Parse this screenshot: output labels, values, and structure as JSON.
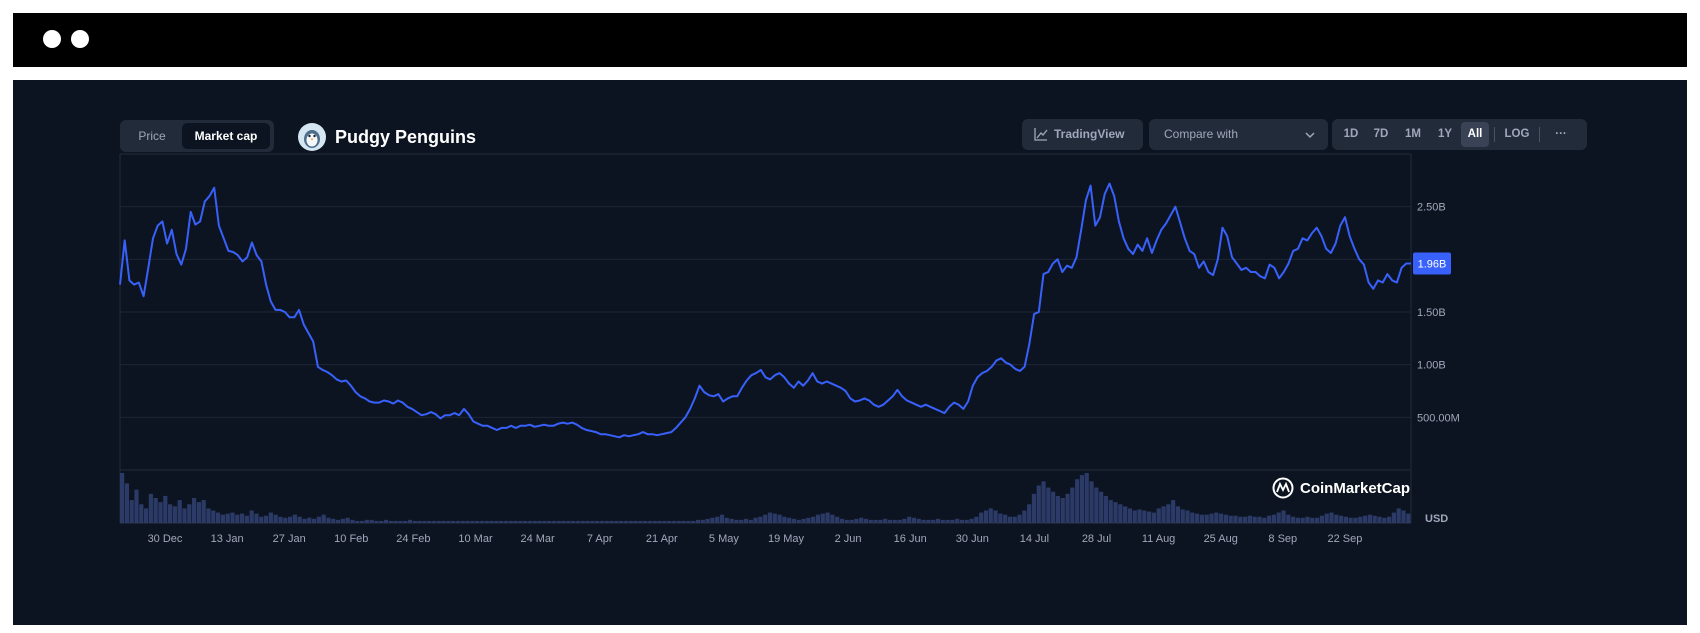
{
  "toggle": {
    "price_label": "Price",
    "market_cap_label": "Market cap",
    "active": "Market cap"
  },
  "coin": {
    "name": "Pudgy Penguins",
    "icon": "penguin-logo-icon"
  },
  "toolbar": {
    "tradingview_label": "TradingView",
    "compare_placeholder": "Compare with",
    "ranges": [
      "1D",
      "7D",
      "1M",
      "1Y",
      "All"
    ],
    "active_range": "All",
    "log_label": "LOG",
    "more_label": "···"
  },
  "colors": {
    "line": "#3861fb",
    "background": "#0d1421",
    "price_tag": "#3861fb",
    "volume": "#2b3a66"
  },
  "chart_data": {
    "type": "line",
    "title": "",
    "ylabel": "",
    "ylim": [
      0,
      3000000000
    ],
    "y_ticks": [
      {
        "value": 500000000,
        "label": "500.00M"
      },
      {
        "value": 1000000000,
        "label": "1.00B"
      },
      {
        "value": 1500000000,
        "label": "1.50B"
      },
      {
        "value": 2000000000,
        "label": ""
      },
      {
        "value": 2500000000,
        "label": "2.50B"
      }
    ],
    "x_ticks": [
      "30 Dec",
      "13 Jan",
      "27 Jan",
      "10 Feb",
      "24 Feb",
      "10 Mar",
      "24 Mar",
      "7 Apr",
      "21 Apr",
      "5 May",
      "19 May",
      "2 Jun",
      "16 Jun",
      "30 Jun",
      "14 Jul",
      "28 Jul",
      "11 Aug",
      "25 Aug",
      "8 Sep",
      "22 Sep"
    ],
    "current_value_label": "1.96B",
    "volume_unit_label": "USD",
    "watermark": "CoinMarketCap",
    "series": [
      {
        "values": [
          1.76,
          2.18,
          1.8,
          1.76,
          1.78,
          1.65,
          1.92,
          2.2,
          2.32,
          2.36,
          2.15,
          2.28,
          2.05,
          1.95,
          2.1,
          2.45,
          2.33,
          2.36,
          2.55,
          2.6,
          2.68,
          2.32,
          2.2,
          2.08,
          2.07,
          2.04,
          1.98,
          2.02,
          2.16,
          2.04,
          1.98,
          1.76,
          1.6,
          1.52,
          1.52,
          1.5,
          1.45,
          1.45,
          1.52,
          1.38,
          1.3,
          1.22,
          0.98,
          0.95,
          0.93,
          0.9,
          0.86,
          0.84,
          0.85,
          0.8,
          0.74,
          0.7,
          0.68,
          0.65,
          0.64,
          0.64,
          0.66,
          0.65,
          0.63,
          0.66,
          0.64,
          0.6,
          0.58,
          0.55,
          0.52,
          0.53,
          0.55,
          0.53,
          0.49,
          0.52,
          0.52,
          0.54,
          0.52,
          0.58,
          0.53,
          0.46,
          0.44,
          0.42,
          0.42,
          0.4,
          0.38,
          0.4,
          0.4,
          0.42,
          0.4,
          0.42,
          0.42,
          0.43,
          0.41,
          0.42,
          0.43,
          0.42,
          0.42,
          0.44,
          0.45,
          0.44,
          0.45,
          0.43,
          0.4,
          0.38,
          0.37,
          0.36,
          0.34,
          0.34,
          0.33,
          0.32,
          0.31,
          0.33,
          0.32,
          0.33,
          0.34,
          0.36,
          0.34,
          0.34,
          0.33,
          0.34,
          0.35,
          0.36,
          0.4,
          0.45,
          0.5,
          0.58,
          0.68,
          0.8,
          0.74,
          0.71,
          0.7,
          0.72,
          0.65,
          0.68,
          0.7,
          0.7,
          0.78,
          0.85,
          0.9,
          0.92,
          0.95,
          0.88,
          0.86,
          0.9,
          0.92,
          0.88,
          0.82,
          0.78,
          0.84,
          0.8,
          0.85,
          0.92,
          0.84,
          0.82,
          0.84,
          0.82,
          0.8,
          0.78,
          0.75,
          0.68,
          0.65,
          0.66,
          0.68,
          0.66,
          0.62,
          0.6,
          0.62,
          0.66,
          0.7,
          0.76,
          0.7,
          0.66,
          0.64,
          0.62,
          0.6,
          0.62,
          0.6,
          0.58,
          0.56,
          0.54,
          0.6,
          0.64,
          0.62,
          0.58,
          0.65,
          0.8,
          0.88,
          0.92,
          0.94,
          0.98,
          1.04,
          1.06,
          1.02,
          1.0,
          0.96,
          0.94,
          0.98,
          1.2,
          1.48,
          1.5,
          1.86,
          1.88,
          1.96,
          2.0,
          1.88,
          1.94,
          1.92,
          2.02,
          2.28,
          2.56,
          2.7,
          2.32,
          2.4,
          2.62,
          2.72,
          2.6,
          2.36,
          2.2,
          2.1,
          2.05,
          2.14,
          2.08,
          2.2,
          2.06,
          2.18,
          2.28,
          2.34,
          2.42,
          2.5,
          2.35,
          2.2,
          2.08,
          2.05,
          1.92,
          1.98,
          1.88,
          1.85,
          2.0,
          2.3,
          2.22,
          2.02,
          1.96,
          1.9,
          1.92,
          1.88,
          1.88,
          1.84,
          1.82,
          1.95,
          1.92,
          1.82,
          1.88,
          1.96,
          2.08,
          2.1,
          2.2,
          2.18,
          2.25,
          2.3,
          2.22,
          2.1,
          2.06,
          2.15,
          2.32,
          2.4,
          2.22,
          2.1,
          2.0,
          1.95,
          1.78,
          1.72,
          1.8,
          1.78,
          1.86,
          1.8,
          1.78,
          1.92,
          1.96,
          1.96
        ],
        "unit": "B"
      }
    ],
    "volume": [
      48,
      38,
      22,
      32,
      18,
      14,
      28,
      24,
      20,
      26,
      18,
      16,
      22,
      14,
      18,
      24,
      20,
      22,
      14,
      12,
      10,
      8,
      9,
      10,
      8,
      9,
      7,
      12,
      9,
      6,
      7,
      10,
      8,
      6,
      5,
      6,
      8,
      6,
      4,
      5,
      4,
      6,
      8,
      5,
      4,
      3,
      4,
      5,
      3,
      2,
      2,
      3,
      3,
      2,
      2,
      3,
      2,
      2,
      2,
      2,
      3,
      2,
      2,
      2,
      2,
      2,
      2,
      2,
      2,
      2,
      2,
      2,
      2,
      2,
      2,
      2,
      2,
      2,
      2,
      2,
      2,
      2,
      2,
      2,
      2,
      2,
      2,
      2,
      2,
      2,
      2,
      2,
      2,
      2,
      2,
      2,
      2,
      2,
      2,
      2,
      2,
      2,
      2,
      2,
      2,
      2,
      2,
      2,
      2,
      2,
      2,
      2,
      2,
      2,
      2,
      2,
      2,
      2,
      2,
      2,
      3,
      3,
      4,
      5,
      6,
      8,
      5,
      4,
      3,
      3,
      4,
      3,
      5,
      6,
      8,
      10,
      9,
      8,
      6,
      5,
      4,
      3,
      4,
      5,
      6,
      8,
      9,
      10,
      8,
      6,
      4,
      3,
      3,
      4,
      5,
      4,
      3,
      3,
      3,
      4,
      3,
      3,
      3,
      4,
      6,
      5,
      4,
      3,
      3,
      3,
      4,
      3,
      3,
      3,
      4,
      3,
      3,
      4,
      6,
      10,
      12,
      14,
      12,
      9,
      8,
      6,
      6,
      8,
      12,
      18,
      28,
      36,
      40,
      34,
      30,
      26,
      24,
      28,
      34,
      42,
      46,
      48,
      40,
      34,
      30,
      26,
      22,
      20,
      18,
      16,
      14,
      12,
      13,
      12,
      11,
      10,
      14,
      16,
      18,
      22,
      16,
      13,
      12,
      10,
      9,
      8,
      8,
      9,
      10,
      9,
      8,
      7,
      7,
      6,
      6,
      7,
      6,
      6,
      5,
      7,
      8,
      10,
      12,
      8,
      6,
      5,
      5,
      6,
      5,
      5,
      7,
      9,
      10,
      8,
      7,
      6,
      5,
      5,
      6,
      7,
      8,
      7,
      6,
      5,
      6,
      10,
      14,
      12,
      9
    ]
  }
}
